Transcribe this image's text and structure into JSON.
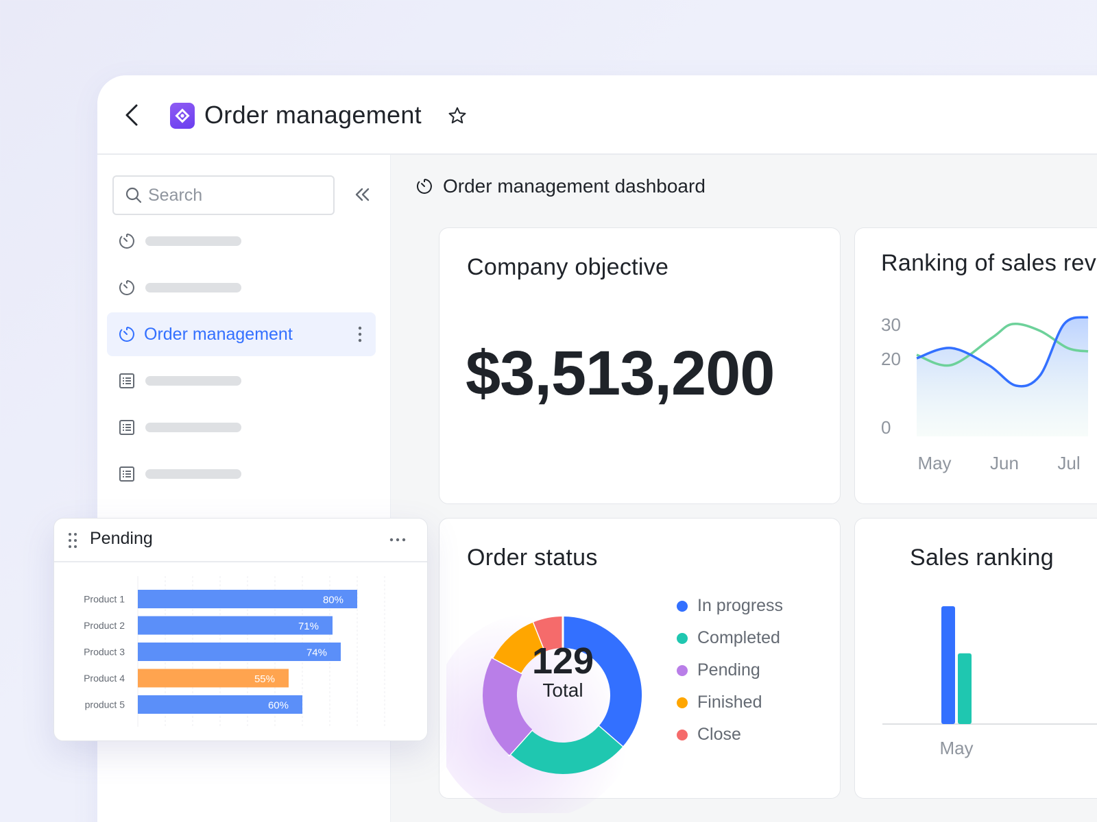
{
  "header": {
    "title": "Order management",
    "back_icon": "chevron-left-icon",
    "logo_icon": "app-logo-icon",
    "favorite_icon": "star-icon"
  },
  "sidebar": {
    "search_placeholder": "Search",
    "items": [
      {
        "type": "dashboard",
        "label": ""
      },
      {
        "type": "dashboard",
        "label": ""
      },
      {
        "type": "dashboard",
        "label": "Order management",
        "active": true
      },
      {
        "type": "table",
        "label": ""
      },
      {
        "type": "table",
        "label": ""
      },
      {
        "type": "table",
        "label": ""
      }
    ]
  },
  "main": {
    "dashboard_title": "Order management dashboard"
  },
  "cards": {
    "company_objective": {
      "title": "Company objective",
      "value": "$3,513,200"
    },
    "ranking_sales_revenue": {
      "title": "Ranking of sales rev"
    },
    "order_status": {
      "title": "Order status",
      "total_value": "129",
      "total_label": "Total"
    },
    "sales_ranking": {
      "title": "Sales ranking"
    }
  },
  "floating_panel": {
    "title": "Pending"
  },
  "colors": {
    "accent": "#3370ff",
    "in_progress": "#3370ff",
    "completed": "#1fc7b0",
    "pending": "#b97ee8",
    "finished": "#ffa600",
    "close": "#f56b6b",
    "bar_blue": "#5b8ff9",
    "bar_orange": "#ffa44f",
    "line_green": "#6dd19a"
  },
  "chart_data": [
    {
      "id": "ranking-of-sales-revenue",
      "type": "line",
      "title": "Ranking of sales rev",
      "x": [
        "May",
        "Jun",
        "Jul"
      ],
      "y_ticks": [
        "30",
        "20",
        "0"
      ],
      "ylim": [
        0,
        30
      ],
      "series": [
        {
          "points": [
            [
              0,
              20
            ],
            [
              0.5,
              23
            ],
            [
              1.05,
              18
            ],
            [
              1.45,
              12
            ],
            [
              1.8,
              15
            ],
            [
              2.15,
              30
            ],
            [
              2.5,
              32
            ]
          ]
        },
        {
          "points": [
            [
              0,
              21
            ],
            [
              0.5,
              18
            ],
            [
              1.1,
              26
            ],
            [
              1.4,
              30
            ],
            [
              1.8,
              28
            ],
            [
              2.2,
              23
            ],
            [
              2.5,
              22
            ]
          ]
        }
      ]
    },
    {
      "id": "order-status",
      "type": "pie",
      "title": "Order status",
      "categories": [
        "In progress",
        "Completed",
        "Pending",
        "Finished",
        "Close"
      ],
      "values": [
        36,
        25,
        21,
        11,
        6
      ],
      "total_label": "129",
      "legend": "right"
    },
    {
      "id": "pending-products",
      "type": "bar",
      "orientation": "horizontal",
      "title": "Pending",
      "categories": [
        "Product 1",
        "Product 2",
        "Product 3",
        "Product 4",
        "product 5"
      ],
      "values": [
        80,
        71,
        74,
        55,
        60
      ],
      "labels": [
        "80%",
        "71%",
        "74%",
        "55%",
        "60%"
      ],
      "highlight_index": 3,
      "xlim": [
        0,
        100
      ]
    },
    {
      "id": "sales-ranking",
      "type": "bar",
      "title": "Sales ranking",
      "categories": [
        "May"
      ],
      "series": [
        {
          "values": [
            100
          ]
        },
        {
          "values": [
            60
          ]
        }
      ]
    }
  ]
}
